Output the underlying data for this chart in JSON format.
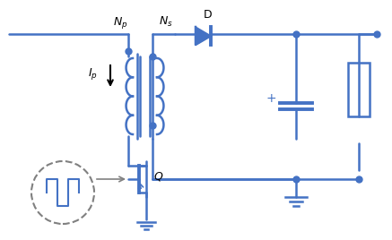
{
  "blue": "#4472C4",
  "dark_blue": "#2E4A8B",
  "gray": "#808080",
  "light_gray": "#AAAAAA",
  "bg": "#FFFFFF",
  "figsize": [
    4.37,
    2.68
  ],
  "dpi": 100
}
